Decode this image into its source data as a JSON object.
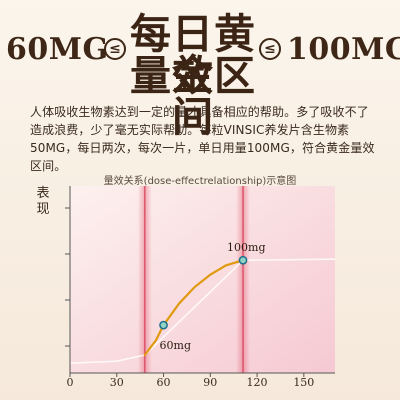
{
  "headline": {
    "left_value": "60MG",
    "right_value": "100MG",
    "lte_symbol": "≤",
    "title_line1": "每日黄金",
    "title_line2": "量效区间"
  },
  "description": "人体吸收生物素达到一定的量才具备相应的帮助。多了吸收不了造成浪费，少了毫无实际帮助。每粒VINSIC养发片含生物素50MG，每日两次，每次一片，单日用量100MG，符合黄金量效区间。",
  "chart_data": {
    "type": "line",
    "title": "量效关系(dose-effectrelationship)示意图",
    "ylabel": "表现",
    "xlabel": "",
    "xlim": [
      0,
      170
    ],
    "x_ticks": [
      0,
      30,
      60,
      90,
      120,
      150
    ],
    "grid": false,
    "y_tick_count": 4,
    "highlight_lines_x": [
      48,
      111
    ],
    "annotations": [
      {
        "x": 60,
        "y": 0.29,
        "text": "60mg"
      },
      {
        "x": 111,
        "y": 0.92,
        "text": "100mg"
      }
    ],
    "series": [
      {
        "color": "#e09a10",
        "points": [
          [
            48,
            0
          ],
          [
            55,
            0.14
          ],
          [
            60,
            0.29
          ],
          [
            70,
            0.5
          ],
          [
            80,
            0.66
          ],
          [
            90,
            0.78
          ],
          [
            100,
            0.87
          ],
          [
            111,
            0.92
          ]
        ]
      }
    ],
    "baseline_curve": [
      [
        0,
        -0.08
      ],
      [
        30,
        -0.06
      ],
      [
        48,
        0
      ],
      [
        111,
        0.92
      ],
      [
        170,
        0.93
      ]
    ],
    "colors": {
      "accent": "#e09a10",
      "marker_fill": "#8fd3c7",
      "marker_stroke": "#1f6f8b",
      "highlight": "#d9405a",
      "axis": "#555555"
    }
  }
}
